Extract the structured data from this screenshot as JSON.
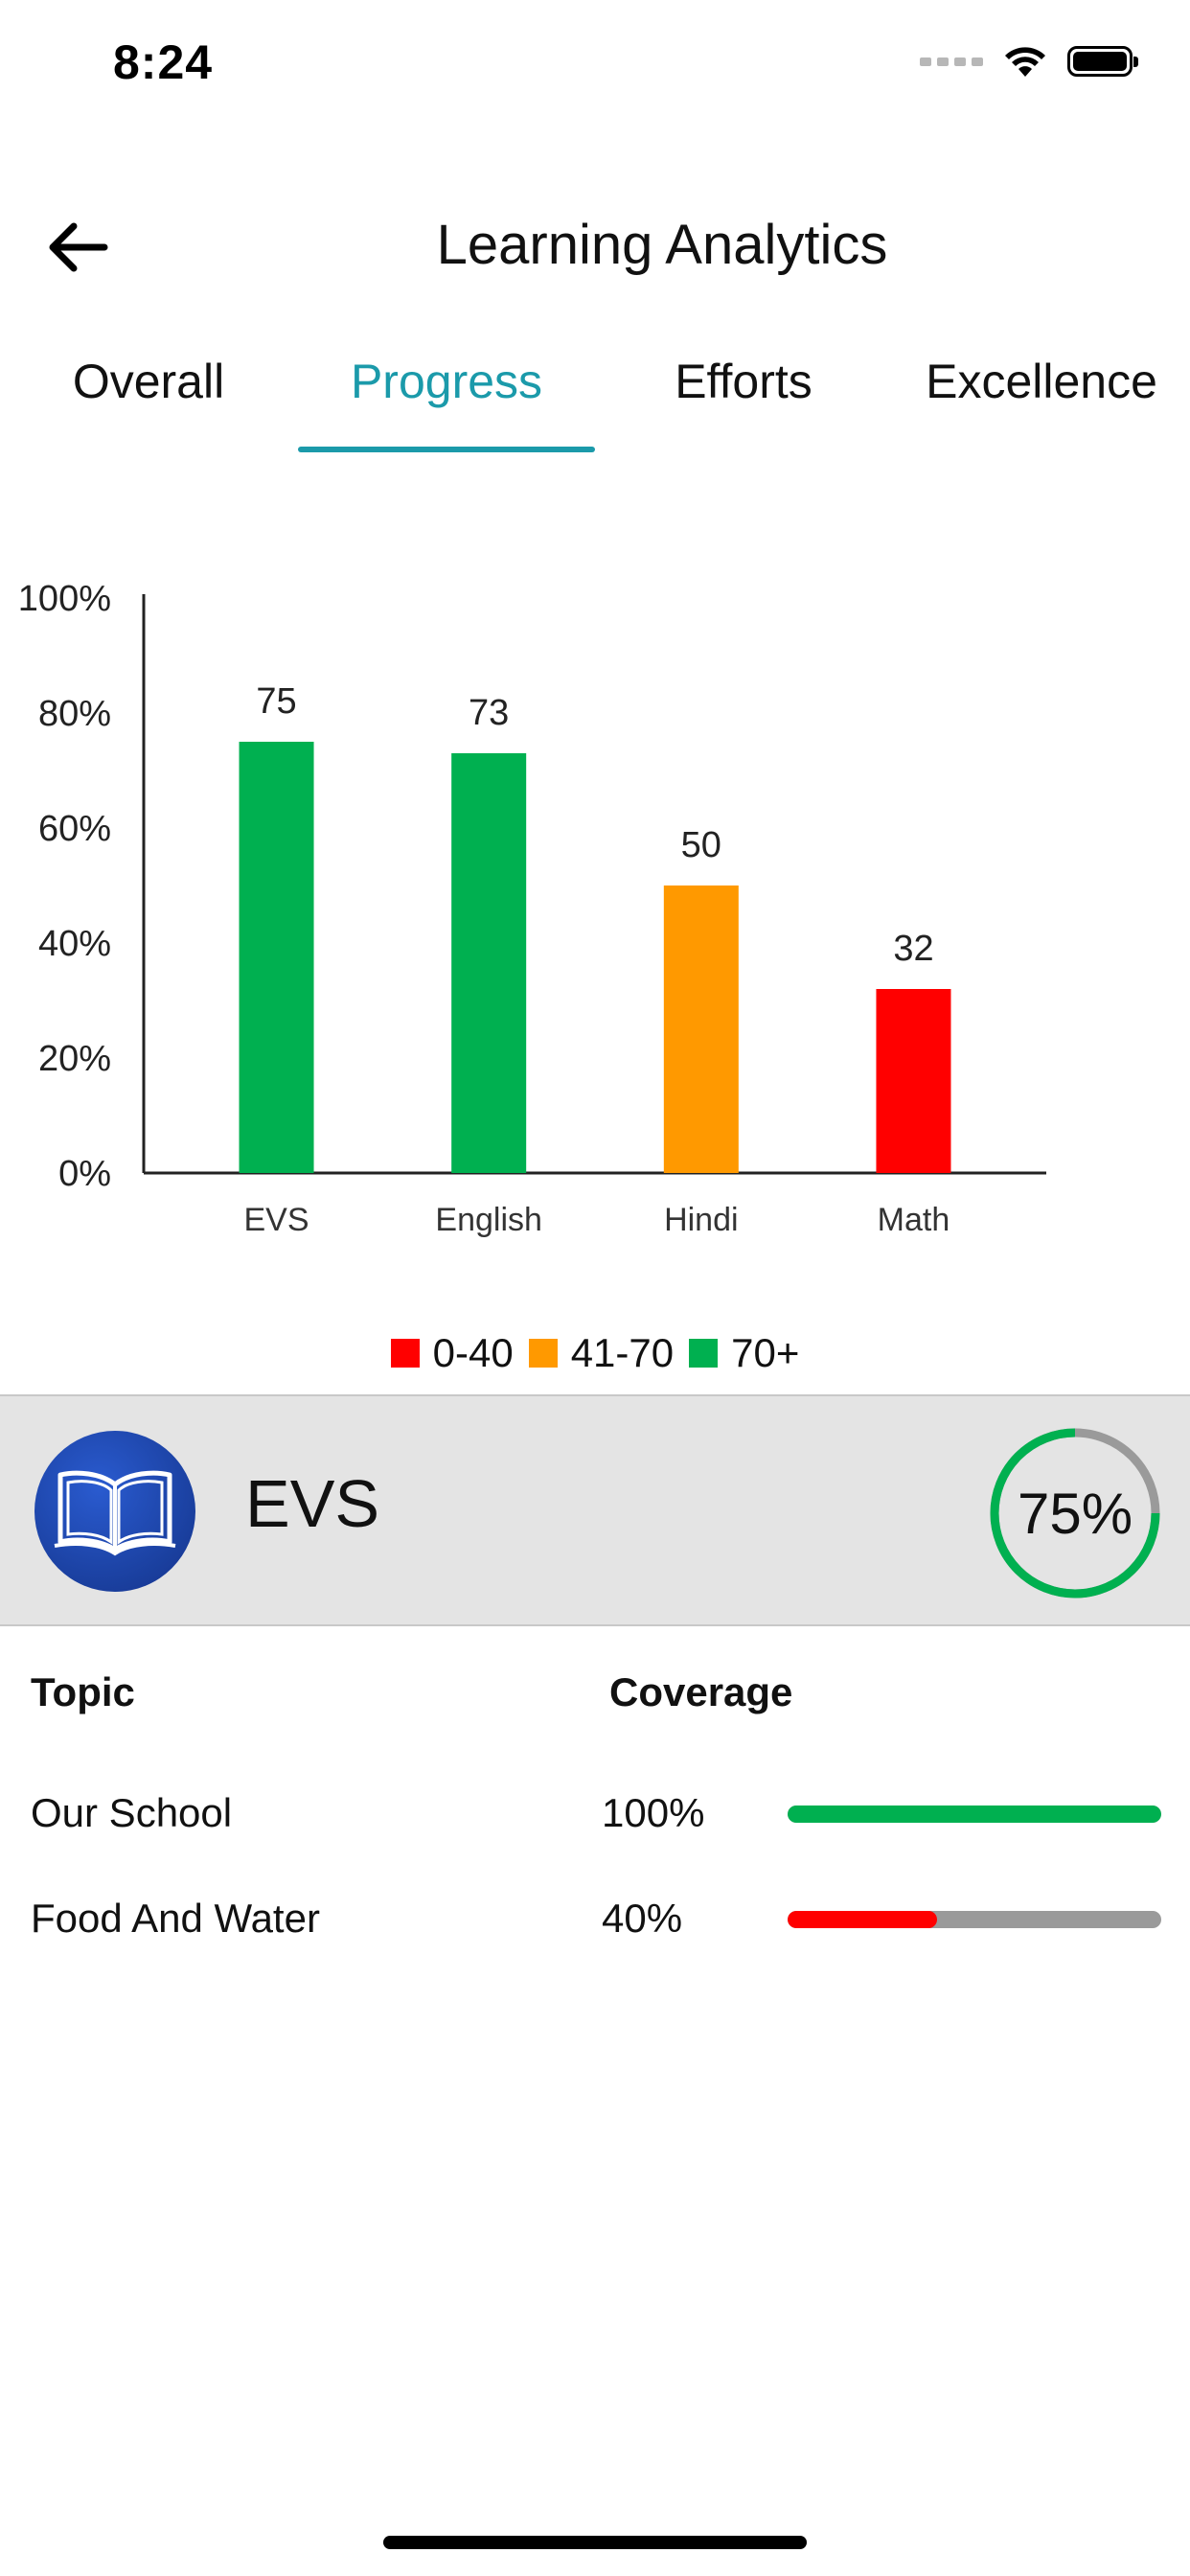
{
  "status_bar": {
    "time": "8:24"
  },
  "header": {
    "title": "Learning Analytics"
  },
  "tabs": [
    {
      "label": "Overall",
      "active": false
    },
    {
      "label": "Progress",
      "active": true
    },
    {
      "label": "Efforts",
      "active": false
    },
    {
      "label": "Excellence",
      "active": false
    }
  ],
  "colors": {
    "accent": "#1b9aaa",
    "low": "#ff0000",
    "mid": "#ff9900",
    "high": "#00b050",
    "ring_track": "#9a9a9a"
  },
  "chart_data": {
    "type": "bar",
    "categories": [
      "EVS",
      "English",
      "Hindi",
      "Math"
    ],
    "values": [
      75,
      73,
      50,
      32
    ],
    "data_labels": [
      "75",
      "73",
      "50",
      "32"
    ],
    "bar_colors": [
      "#00b050",
      "#00b050",
      "#ff9900",
      "#ff0000"
    ],
    "ylim": [
      0,
      100
    ],
    "yticks": [
      0,
      20,
      40,
      60,
      80,
      100
    ],
    "ytick_labels": [
      "0%",
      "20%",
      "40%",
      "60%",
      "80%",
      "100%"
    ],
    "title": "",
    "xlabel": "",
    "ylabel": ""
  },
  "legend": [
    {
      "label": "0-40",
      "color": "#ff0000"
    },
    {
      "label": "41-70",
      "color": "#ff9900"
    },
    {
      "label": "70+",
      "color": "#00b050"
    }
  ],
  "subject": {
    "name": "EVS",
    "percent_label": "75%",
    "percent": 75,
    "icon": "open-book-icon"
  },
  "topics": {
    "header_topic": "Topic",
    "header_coverage": "Coverage",
    "rows": [
      {
        "topic": "Our School",
        "coverage_label": "100%",
        "coverage": 100,
        "color": "#00b050"
      },
      {
        "topic": "Food And Water",
        "coverage_label": "40%",
        "coverage": 40,
        "color": "#ff0000"
      }
    ]
  }
}
